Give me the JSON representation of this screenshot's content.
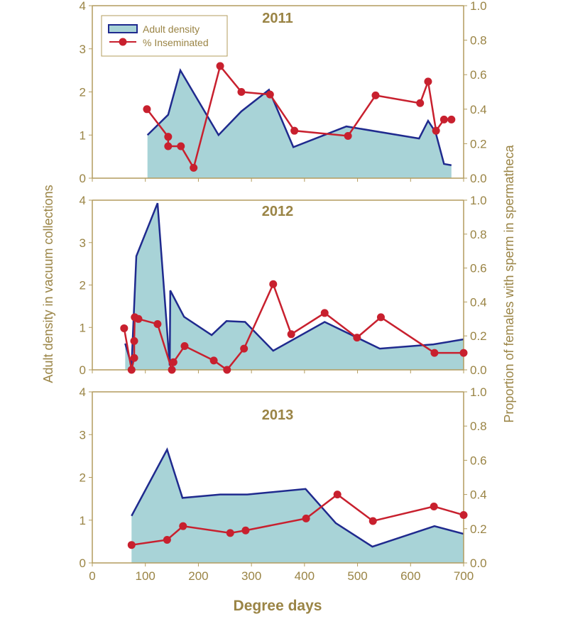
{
  "chart_data": {
    "type": "area+line",
    "xlabel": "Degree days",
    "ylabel_left": "Adult density in vacuum collections",
    "ylabel_right": "Proportion of females with sperm in spermatheca",
    "xlim": [
      0,
      700
    ],
    "xticks": [
      "0",
      "100",
      "200",
      "300",
      "400",
      "500",
      "600",
      "700"
    ],
    "ylim_left": [
      0,
      4
    ],
    "yticks_left": [
      "0",
      "1",
      "2",
      "3",
      "4"
    ],
    "ylim_right": [
      0,
      1
    ],
    "yticks_right": [
      "0.0",
      "0.2",
      "0.4",
      "0.6",
      "0.8",
      "1.0"
    ],
    "legend": {
      "placement": "top-left",
      "entries": [
        "Adult density",
        "% Inseminated"
      ]
    },
    "colors": {
      "area_fill": "#a8d3d7",
      "area_line": "#1f2a8e",
      "line": "#c8202e",
      "axis": "#b39c5e",
      "text": "#9a8445"
    },
    "panels": [
      {
        "title": "2011",
        "series": [
          {
            "name": "Adult density",
            "axis": "left",
            "x": [
              104,
              143,
              166,
              238,
              281,
              333,
              379,
              479,
              616,
              633,
              647,
              663,
              677
            ],
            "y": [
              1.0,
              1.47,
              2.5,
              1.0,
              1.55,
              2.05,
              0.72,
              1.2,
              0.92,
              1.33,
              1.07,
              0.33,
              0.3
            ]
          },
          {
            "name": "% Inseminated",
            "axis": "right",
            "x": [
              103,
              143,
              143,
              167,
              191,
              241,
              281,
              335,
              381,
              482,
              534,
              618,
              633,
              648,
              663,
              677
            ],
            "y": [
              0.4,
              0.24,
              0.185,
              0.185,
              0.06,
              0.65,
              0.5,
              0.485,
              0.275,
              0.245,
              0.48,
              0.435,
              0.56,
              0.275,
              0.34,
              0.34
            ]
          }
        ]
      },
      {
        "title": "2012",
        "series": [
          {
            "name": "Adult density",
            "axis": "left",
            "x": [
              62,
              74,
              83,
              123,
              146,
              147,
              173,
              225,
              253,
              288,
              341,
              438,
              542,
              643,
              700
            ],
            "y": [
              0.62,
              0.1,
              2.68,
              3.93,
              0.1,
              1.87,
              1.25,
              0.82,
              1.15,
              1.13,
              0.45,
              1.13,
              0.5,
              0.6,
              0.72
            ]
          },
          {
            "name": "% Inseminated",
            "axis": "right",
            "x": [
              60,
              74,
              79,
              79,
              80,
              87,
              123,
              150,
              153,
              174,
              229,
              254,
              286,
              341,
              375,
              438,
              499,
              544,
              645,
              700
            ],
            "y": [
              0.245,
              0.0,
              0.07,
              0.17,
              0.31,
              0.3,
              0.27,
              0.0,
              0.045,
              0.14,
              0.055,
              0.0,
              0.125,
              0.505,
              0.21,
              0.335,
              0.19,
              0.31,
              0.1,
              0.1
            ]
          }
        ]
      },
      {
        "title": "2013",
        "series": [
          {
            "name": "Adult density",
            "axis": "left",
            "x": [
              74,
              141,
              170,
              241,
              292,
              402,
              459,
              528,
              645,
              700
            ],
            "y": [
              1.1,
              2.65,
              1.52,
              1.6,
              1.6,
              1.73,
              0.93,
              0.38,
              0.86,
              0.68
            ]
          },
          {
            "name": "% Inseminated",
            "axis": "right",
            "x": [
              74,
              141,
              171,
              260,
              289,
              403,
              462,
              529,
              644,
              700
            ],
            "y": [
              0.105,
              0.135,
              0.215,
              0.175,
              0.19,
              0.26,
              0.4,
              0.245,
              0.33,
              0.28
            ]
          }
        ]
      }
    ]
  }
}
